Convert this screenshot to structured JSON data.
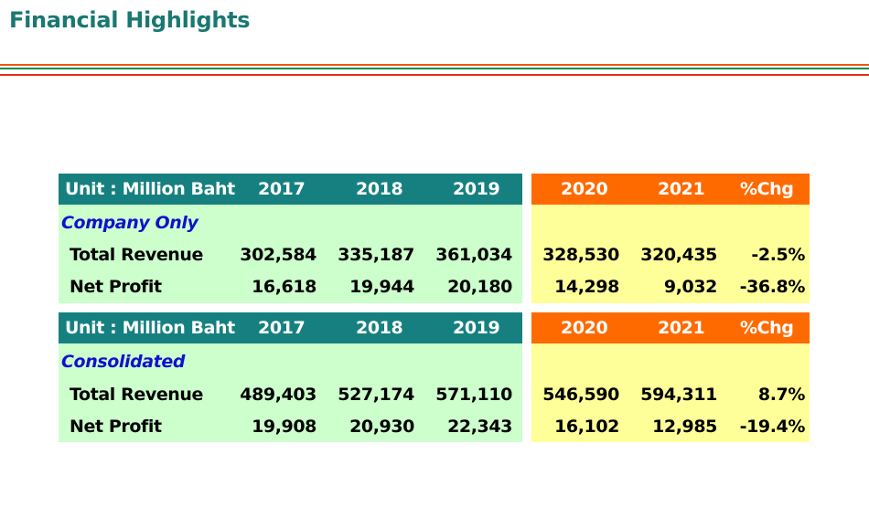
{
  "title": "Financial Highlights",
  "colors": {
    "title": "#1a7872",
    "teal_header": "#168080",
    "orange_header": "#ff6a00",
    "green_fill": "#ccffcc",
    "yellow_fill": "#ffff99",
    "section_label": "#1111cc"
  },
  "tables": [
    {
      "unit_label": "Unit : Million Baht",
      "years_left": [
        "2017",
        "2018",
        "2019"
      ],
      "years_right": [
        "2020",
        "2021",
        "%Chg"
      ],
      "section": "Company Only",
      "rows": [
        {
          "label": "Total Revenue",
          "v2017": "302,584",
          "v2018": "335,187",
          "v2019": "361,034",
          "v2020": "328,530",
          "v2021": "320,435",
          "chg": "-2.5%"
        },
        {
          "label": "Net Profit",
          "v2017": "16,618",
          "v2018": "19,944",
          "v2019": "20,180",
          "v2020": "14,298",
          "v2021": "9,032",
          "chg": "-36.8%"
        }
      ]
    },
    {
      "unit_label": "Unit : Million Baht",
      "years_left": [
        "2017",
        "2018",
        "2019"
      ],
      "years_right": [
        "2020",
        "2021",
        "%Chg"
      ],
      "section": "Consolidated",
      "rows": [
        {
          "label": "Total Revenue",
          "v2017": "489,403",
          "v2018": "527,174",
          "v2019": "571,110",
          "v2020": "546,590",
          "v2021": "594,311",
          "chg": "8.7%"
        },
        {
          "label": "Net Profit",
          "v2017": "19,908",
          "v2018": "20,930",
          "v2019": "22,343",
          "v2020": "16,102",
          "v2021": "12,985",
          "chg": "-19.4%"
        }
      ]
    }
  ]
}
